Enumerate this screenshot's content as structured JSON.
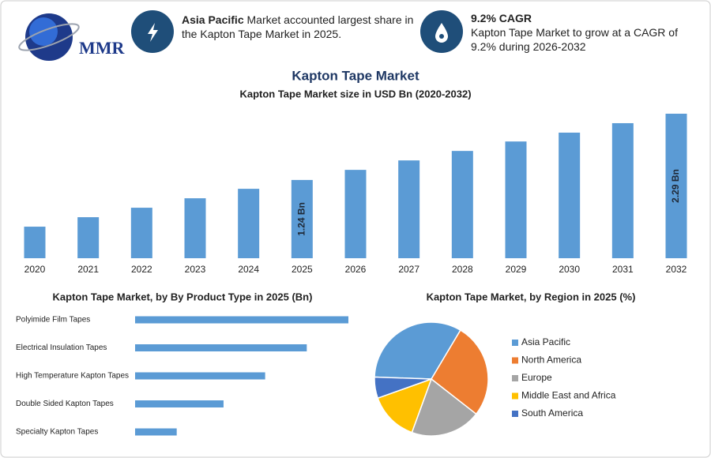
{
  "header": {
    "logo": "MMR",
    "info_1": {
      "bold": "Asia Pacific",
      "text": "Market accounted largest share in the Kapton Tape Market in 2025."
    },
    "info_2": {
      "bold": "9.2% CAGR",
      "text": "Kapton Tape Market to grow at a CAGR of 9.2% during 2026-2032"
    }
  },
  "chart_data": [
    {
      "type": "bar",
      "title": "Kapton Tape Market",
      "subtitle": "Kapton Tape Market size in USD Bn (2020-2032)",
      "categories": [
        "2020",
        "2021",
        "2022",
        "2023",
        "2024",
        "2025",
        "2026",
        "2027",
        "2028",
        "2029",
        "2030",
        "2031",
        "2032"
      ],
      "values": [
        0.5,
        0.65,
        0.8,
        0.95,
        1.1,
        1.24,
        1.4,
        1.55,
        1.7,
        1.85,
        1.99,
        2.14,
        2.29
      ],
      "value_labels": [
        null,
        null,
        null,
        null,
        null,
        "1.24 Bn",
        null,
        null,
        null,
        null,
        null,
        null,
        "2.29 Bn"
      ],
      "color": "#5b9bd5"
    },
    {
      "type": "barh",
      "title": "Kapton Tape Market, by By Product Type in 2025 (Bn)",
      "categories": [
        "Polyimide Film Tapes",
        "Electrical Insulation Tapes",
        "High Temperature Kapton Tapes",
        "Double Sided Kapton Tapes",
        "Specialty Kapton Tapes"
      ],
      "values": [
        0.41,
        0.33,
        0.25,
        0.17,
        0.08
      ],
      "color": "#5b9bd5"
    },
    {
      "type": "pie",
      "title": "Kapton Tape Market, by Region in 2025 (%)",
      "categories": [
        "Asia Pacific",
        "North America",
        "Europe",
        "Middle East and Africa",
        "South America"
      ],
      "values": [
        33,
        27,
        20,
        14,
        6
      ],
      "colors": [
        "#5b9bd5",
        "#ed7d31",
        "#a5a5a5",
        "#ffc000",
        "#4472c4"
      ],
      "legend": "right"
    }
  ]
}
